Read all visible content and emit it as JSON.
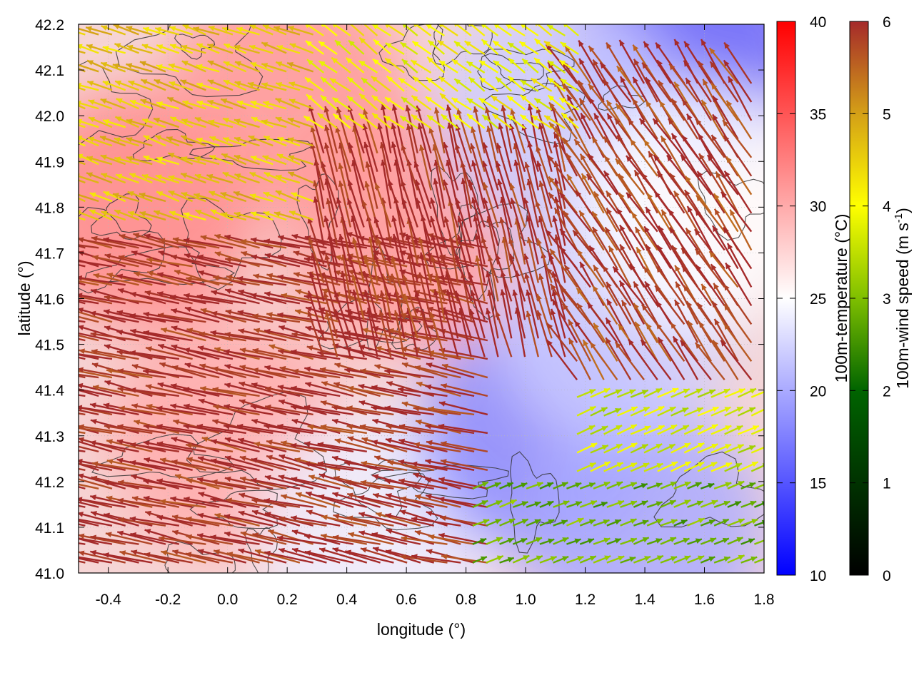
{
  "chart_data": {
    "type": "heatmap",
    "overlay": "wind vectors (quiver) with topography contour lines",
    "title": "",
    "xlabel": "longitude (°)",
    "ylabel": "latitude (°)",
    "xlim": [
      -0.5,
      1.8
    ],
    "ylim": [
      41.0,
      42.2
    ],
    "x_ticks": [
      "-0.4",
      "-0.2",
      "0.0",
      "0.2",
      "0.4",
      "0.6",
      "0.8",
      "1.0",
      "1.2",
      "1.4",
      "1.6",
      "1.8"
    ],
    "x_tick_values": [
      -0.4,
      -0.2,
      0.0,
      0.2,
      0.4,
      0.6,
      0.8,
      1.0,
      1.2,
      1.4,
      1.6,
      1.8
    ],
    "y_ticks": [
      "41.0",
      "41.1",
      "41.2",
      "41.3",
      "41.4",
      "41.5",
      "41.6",
      "41.7",
      "41.8",
      "41.9",
      "42.0",
      "42.1",
      "42.2"
    ],
    "y_tick_values": [
      41.0,
      41.1,
      41.2,
      41.3,
      41.4,
      41.5,
      41.6,
      41.7,
      41.8,
      41.9,
      42.0,
      42.1,
      42.2
    ],
    "grid": true,
    "temperature_colorbar": {
      "label": "100m-temperature (°C)",
      "range": [
        10,
        40
      ],
      "ticks": [
        "10",
        "15",
        "20",
        "25",
        "30",
        "35",
        "40"
      ],
      "tick_values": [
        10,
        15,
        20,
        25,
        30,
        35,
        40
      ],
      "colors": [
        "#0000ff",
        "#ffffff",
        "#ff0000"
      ]
    },
    "wind_colorbar": {
      "label_main": "100m-wind speed (m s",
      "label_sup": "-1",
      "label_end": ")",
      "range": [
        0,
        6
      ],
      "ticks": [
        "0",
        "1",
        "2",
        "3",
        "4",
        "5",
        "6"
      ],
      "tick_values": [
        0,
        1,
        2,
        3,
        4,
        5,
        6
      ],
      "colors": [
        "#000000",
        "#006400",
        "#7fbf00",
        "#ffff00",
        "#d4a017",
        "#a52a2a"
      ]
    },
    "temperature_regions": [
      {
        "lon": -0.3,
        "lat": 41.8,
        "temp": 32
      },
      {
        "lon": 0.2,
        "lat": 42.05,
        "temp": 31
      },
      {
        "lon": 0.6,
        "lat": 41.75,
        "temp": 31
      },
      {
        "lon": 0.0,
        "lat": 41.3,
        "temp": 30
      },
      {
        "lon": 0.5,
        "lat": 41.1,
        "temp": 24
      },
      {
        "lon": 1.05,
        "lat": 41.3,
        "temp": 18
      },
      {
        "lon": 1.4,
        "lat": 41.1,
        "temp": 20
      },
      {
        "lon": 1.3,
        "lat": 41.55,
        "temp": 22
      },
      {
        "lon": 1.55,
        "lat": 42.15,
        "temp": 16
      },
      {
        "lon": 1.1,
        "lat": 42.0,
        "temp": 22
      },
      {
        "lon": 1.6,
        "lat": 41.8,
        "temp": 25
      }
    ],
    "wind_regions": [
      {
        "lon_min": -0.5,
        "lon_max": 0.9,
        "lat_min": 41.0,
        "lat_max": 41.75,
        "speed": 6,
        "direction": "from east-southeast",
        "u": -1.0,
        "v": 0.22
      },
      {
        "lon_min": 0.3,
        "lon_max": 1.15,
        "lat_min": 41.45,
        "lat_max": 41.95,
        "speed": 6,
        "direction": "from south-southeast",
        "u": -0.25,
        "v": 1.0
      },
      {
        "lon_min": 1.15,
        "lon_max": 1.8,
        "lat_min": 41.4,
        "lat_max": 42.1,
        "speed": 5.8,
        "direction": "from southeast",
        "u": -0.55,
        "v": 0.85
      },
      {
        "lon_min": -0.5,
        "lon_max": 0.3,
        "lat_min": 41.75,
        "lat_max": 42.2,
        "speed": 4.3,
        "direction": "from east-southeast",
        "u": -1.0,
        "v": 0.35
      },
      {
        "lon_min": 0.3,
        "lon_max": 1.2,
        "lat_min": 41.95,
        "lat_max": 42.2,
        "speed": 3.6,
        "direction": "from southeast",
        "u": -0.8,
        "v": 0.6
      },
      {
        "lon_min": 1.15,
        "lon_max": 1.8,
        "lat_min": 41.2,
        "lat_max": 41.4,
        "speed": 3.2,
        "direction": "from southwest",
        "u": 0.9,
        "v": 0.4
      },
      {
        "lon_min": 0.8,
        "lon_max": 1.8,
        "lat_min": 41.0,
        "lat_max": 41.2,
        "speed": 2.2,
        "direction": "from southwest",
        "u": 0.9,
        "v": 0.35
      }
    ]
  }
}
